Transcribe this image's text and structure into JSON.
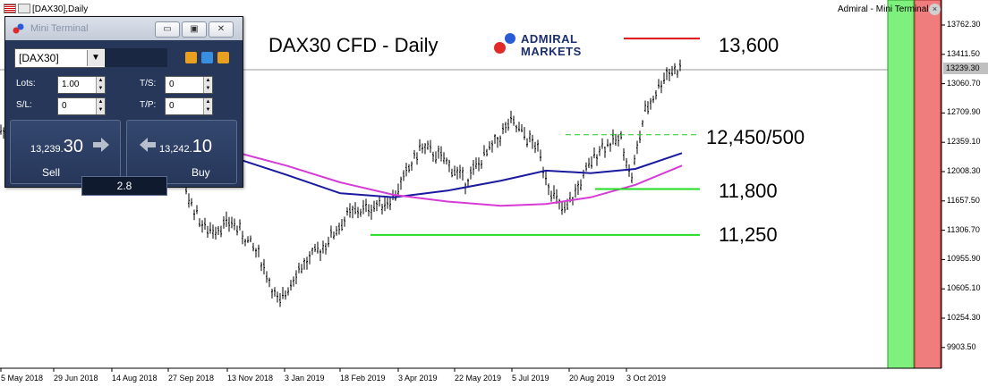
{
  "window": {
    "symbol_label": "[DAX30],Daily",
    "top_right_label": "Admiral - Mini Terminal",
    "close_glyph": "×"
  },
  "annotations": {
    "title": "DAX30 CFD - Daily",
    "brand_line1": "ADMIRAL",
    "brand_line2": "MARKETS",
    "level_13600": "13,600",
    "level_12450": "12,450/500",
    "level_11800": "11,800",
    "level_11250": "11,250",
    "colors": {
      "red_line": "#dd1111",
      "green_line": "#22dd22",
      "dashed_green": "#22cc22"
    }
  },
  "mini_terminal": {
    "title": "Mini Terminal",
    "symbol": "[DAX30]",
    "lots_label": "Lots:",
    "lots_value": "1.00",
    "sl_label": "S/L:",
    "sl_value": "0",
    "ts_label": "T/S:",
    "ts_value": "0",
    "tp_label": "T/P:",
    "tp_value": "0",
    "sell_price_small": "13,239.",
    "sell_price_big": "30",
    "buy_price_small": "13,242.",
    "buy_price_big": "10",
    "sell_label": "Sell",
    "buy_label": "Buy",
    "spread": "2.8",
    "window_buttons": [
      "▭",
      "▣",
      "✕"
    ]
  },
  "axis": {
    "y_labels": [
      "13762.30",
      "13411.50",
      "13060.70",
      "12709.90",
      "12359.10",
      "12008.30",
      "11657.50",
      "11306.70",
      "10955.90",
      "10605.10",
      "10254.30",
      "9903.50"
    ],
    "current_price": "13239.30",
    "x_labels": [
      "5 May 2018",
      "29 Jun 2018",
      "14 Aug 2018",
      "27 Sep 2018",
      "13 Nov 2018",
      "3 Jan 2019",
      "18 Feb 2019",
      "3 Apr 2019",
      "22 May 2019",
      "5 Jul 2019",
      "20 Aug 2019",
      "3 Oct 2019"
    ]
  },
  "chart_data": {
    "type": "bar",
    "title": "DAX30 CFD - Daily",
    "xlabel": "",
    "ylabel": "",
    "ylim": [
      9700,
      13900
    ],
    "x_labels": [
      "5 May 2018",
      "29 Jun 2018",
      "14 Aug 2018",
      "27 Sep 2018",
      "13 Nov 2018",
      "3 Jan 2019",
      "18 Feb 2019",
      "3 Apr 2019",
      "22 May 2019",
      "5 Jul 2019",
      "20 Aug 2019",
      "3 Oct 2019"
    ],
    "price_path": [
      [
        0,
        12500
      ],
      [
        60,
        12400
      ],
      [
        110,
        12700
      ],
      [
        150,
        12300
      ],
      [
        195,
        12500
      ],
      [
        210,
        11700
      ],
      [
        230,
        11300
      ],
      [
        260,
        11400
      ],
      [
        290,
        11000
      ],
      [
        312,
        10400
      ],
      [
        330,
        10800
      ],
      [
        360,
        11100
      ],
      [
        390,
        11500
      ],
      [
        420,
        11600
      ],
      [
        440,
        11700
      ],
      [
        470,
        12300
      ],
      [
        490,
        12200
      ],
      [
        520,
        11900
      ],
      [
        550,
        12300
      ],
      [
        570,
        12600
      ],
      [
        600,
        12300
      ],
      [
        615,
        11800
      ],
      [
        630,
        11500
      ],
      [
        650,
        11900
      ],
      [
        670,
        12300
      ],
      [
        695,
        12400
      ],
      [
        705,
        11900
      ],
      [
        720,
        12700
      ],
      [
        745,
        13200
      ],
      [
        762,
        13239
      ]
    ],
    "moving_averages": [
      {
        "color": "#1a1aa0",
        "points": [
          [
            260,
            12180
          ],
          [
            320,
            11970
          ],
          [
            380,
            11750
          ],
          [
            440,
            11700
          ],
          [
            500,
            11780
          ],
          [
            560,
            11900
          ],
          [
            610,
            12020
          ],
          [
            660,
            11990
          ],
          [
            710,
            12040
          ],
          [
            762,
            12230
          ]
        ]
      },
      {
        "color": "#d63bd6",
        "points": [
          [
            260,
            12250
          ],
          [
            320,
            12080
          ],
          [
            380,
            11880
          ],
          [
            440,
            11730
          ],
          [
            500,
            11650
          ],
          [
            560,
            11600
          ],
          [
            610,
            11620
          ],
          [
            660,
            11700
          ],
          [
            710,
            11850
          ],
          [
            762,
            12080
          ]
        ]
      }
    ],
    "levels": [
      {
        "label": "13,600",
        "value": 13600,
        "color": "#dd1111",
        "x1": 697,
        "x2": 782,
        "style": "solid"
      },
      {
        "label": "12,450/500",
        "value": 12450,
        "color": "#22cc22",
        "x1": 632,
        "x2": 782,
        "style": "dashed"
      },
      {
        "label": "11,800",
        "value": 11800,
        "color": "#22dd22",
        "x1": 665,
        "x2": 782,
        "style": "solid"
      },
      {
        "label": "11,250",
        "value": 11250,
        "color": "#22dd22",
        "x1": 414,
        "x2": 782,
        "style": "solid"
      }
    ]
  }
}
